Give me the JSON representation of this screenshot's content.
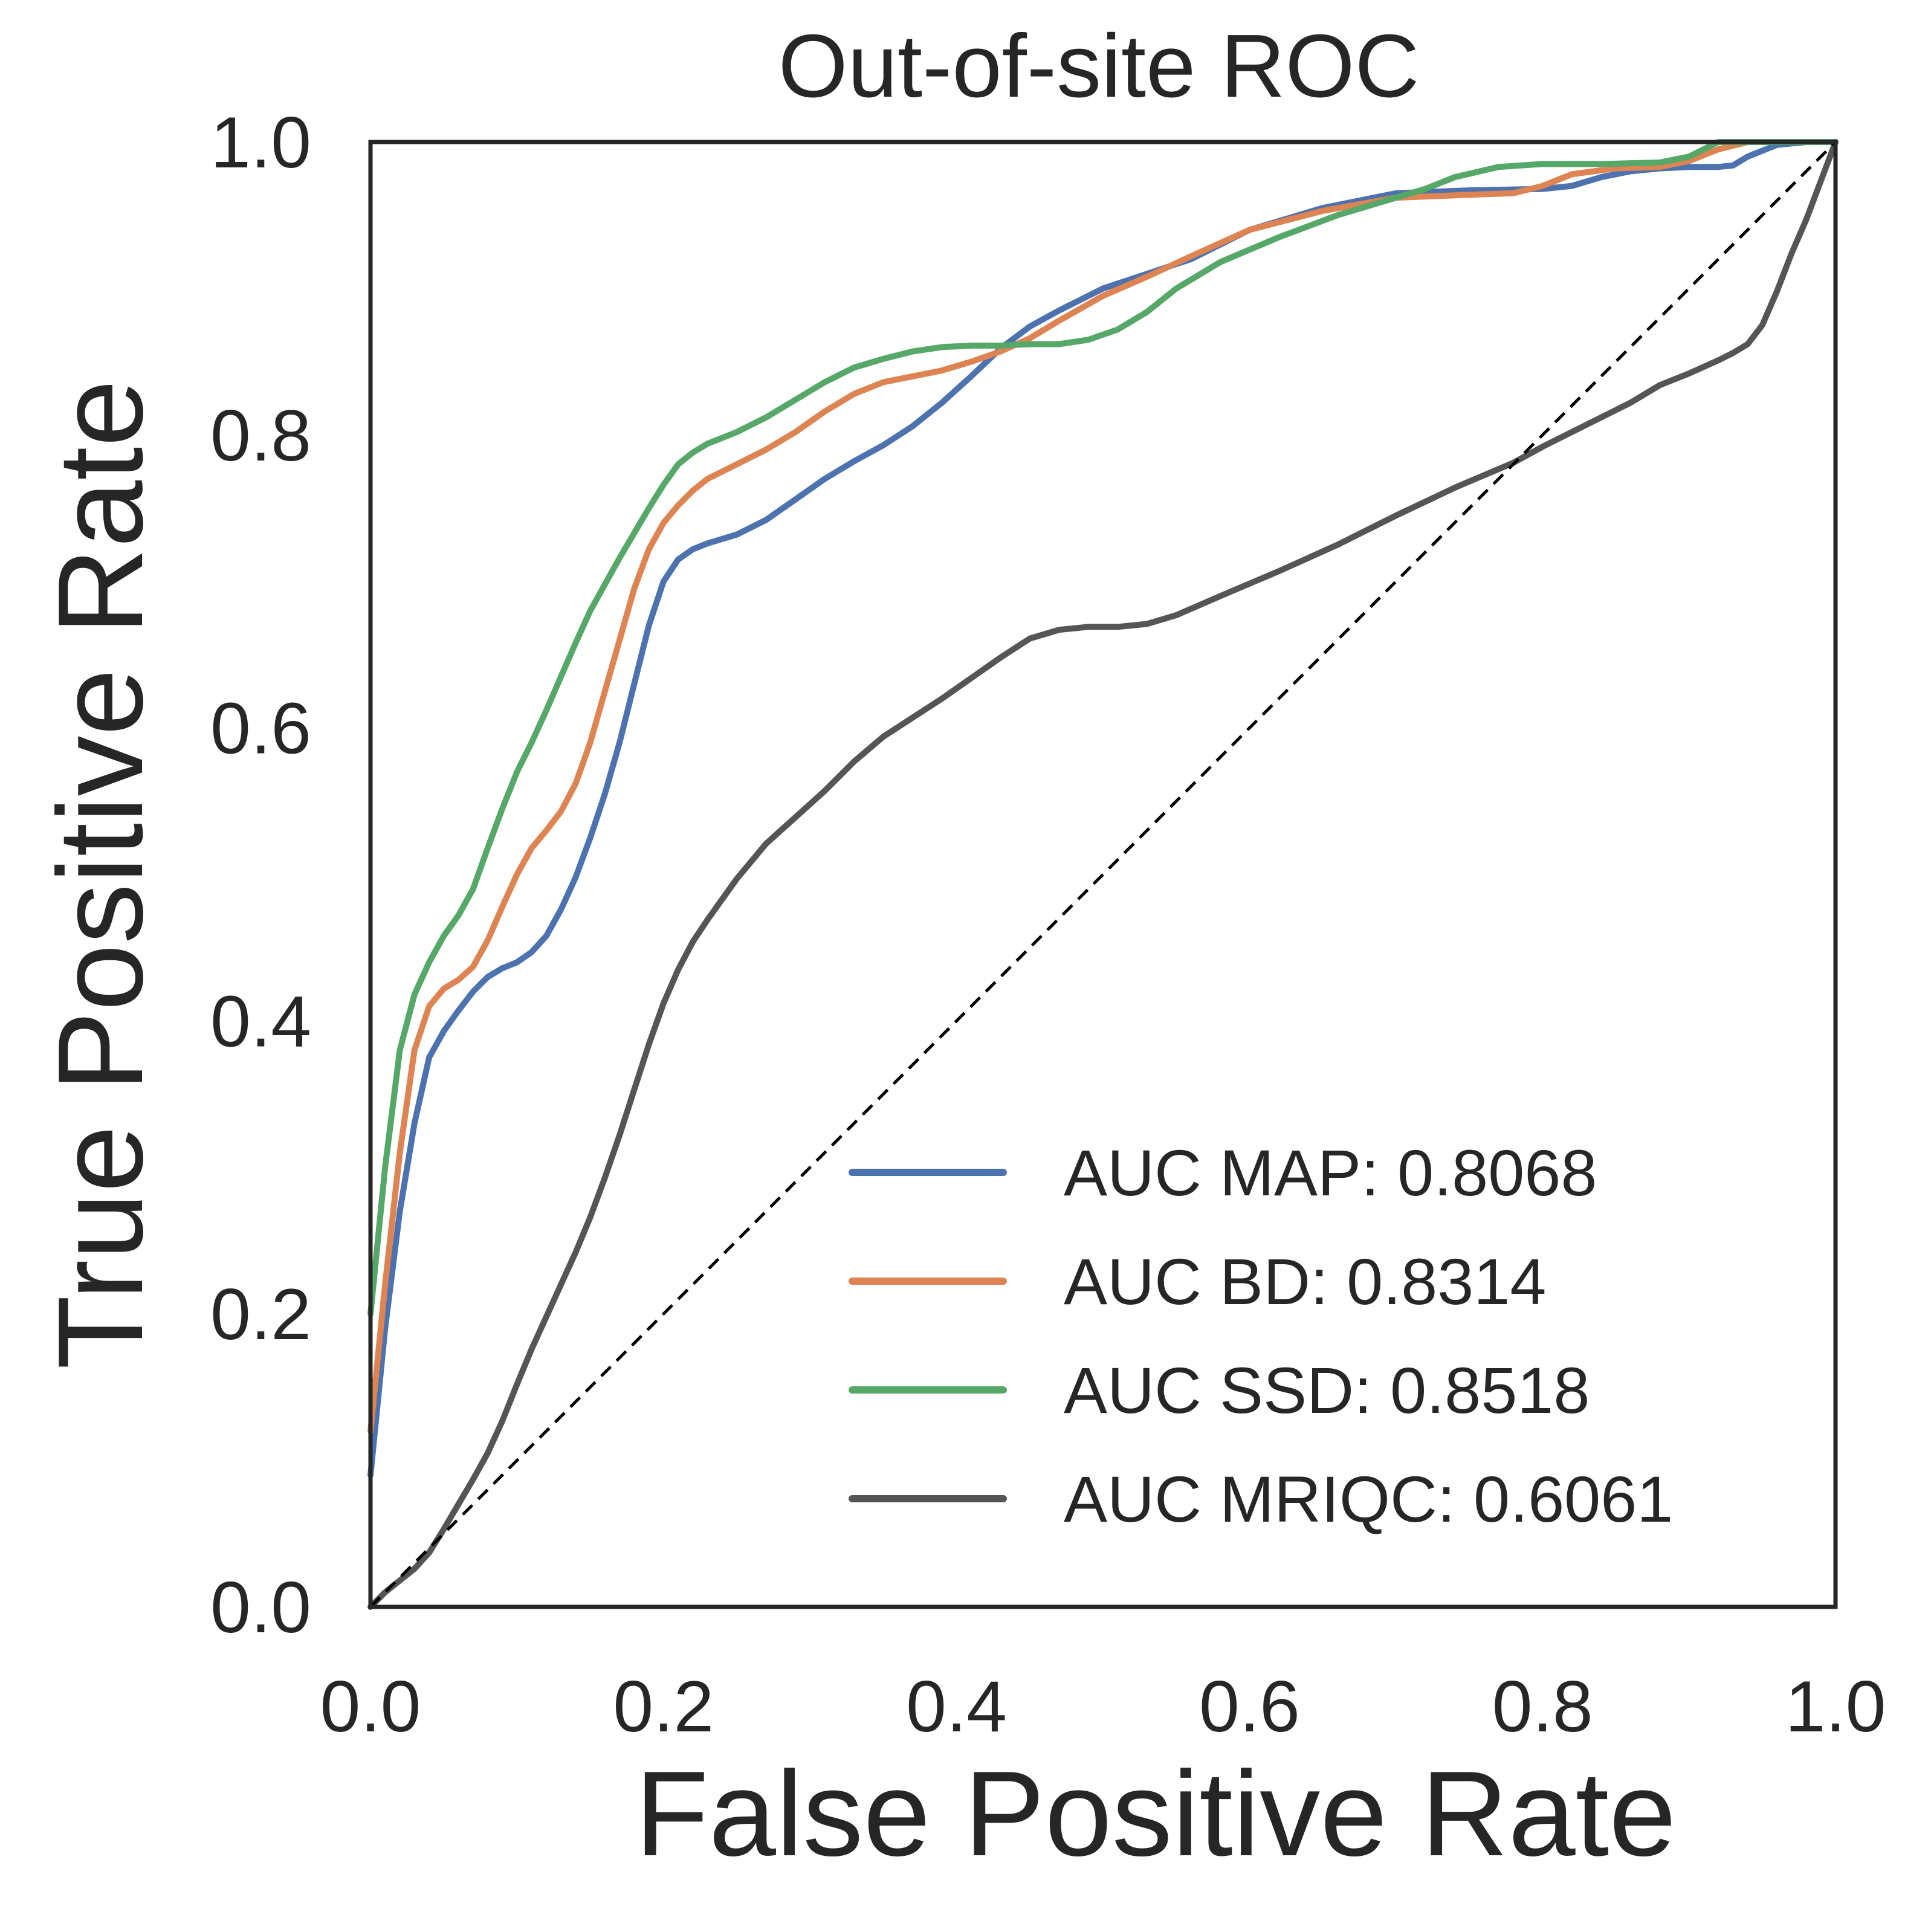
{
  "chart_data": {
    "type": "line",
    "title": "Out-of-site ROC",
    "xlabel": "False Positive Rate",
    "ylabel": "True Positive Rate",
    "xlim": [
      0.0,
      1.0
    ],
    "ylim": [
      0.0,
      1.0
    ],
    "x_ticks": [
      0.0,
      0.2,
      0.4,
      0.6,
      0.8,
      1.0
    ],
    "y_ticks": [
      0.0,
      0.2,
      0.4,
      0.6,
      0.8,
      1.0
    ],
    "x_tick_labels": [
      "0.0",
      "0.2",
      "0.4",
      "0.6",
      "0.8",
      "1.0"
    ],
    "y_tick_labels": [
      "0.0",
      "0.2",
      "0.4",
      "0.6",
      "0.8",
      "1.0"
    ],
    "grid": false,
    "legend_position": "lower-right",
    "series": [
      {
        "name": "AUC MAP: 0.8068",
        "color": "#4c72b0",
        "x": [
          0.0,
          0.01,
          0.02,
          0.03,
          0.04,
          0.05,
          0.06,
          0.07,
          0.08,
          0.09,
          0.1,
          0.11,
          0.12,
          0.13,
          0.14,
          0.15,
          0.16,
          0.17,
          0.18,
          0.19,
          0.2,
          0.21,
          0.22,
          0.23,
          0.25,
          0.27,
          0.29,
          0.31,
          0.33,
          0.35,
          0.37,
          0.39,
          0.41,
          0.43,
          0.45,
          0.47,
          0.5,
          0.53,
          0.56,
          0.6,
          0.65,
          0.7,
          0.75,
          0.8,
          0.82,
          0.84,
          0.86,
          0.88,
          0.9,
          0.92,
          0.93,
          0.94,
          0.96,
          0.98,
          1.0
        ],
        "y": [
          0.09,
          0.19,
          0.27,
          0.33,
          0.375,
          0.393,
          0.407,
          0.42,
          0.43,
          0.436,
          0.44,
          0.447,
          0.458,
          0.476,
          0.498,
          0.525,
          0.555,
          0.59,
          0.63,
          0.67,
          0.7,
          0.715,
          0.722,
          0.726,
          0.732,
          0.742,
          0.756,
          0.77,
          0.782,
          0.793,
          0.806,
          0.822,
          0.84,
          0.859,
          0.874,
          0.885,
          0.9,
          0.91,
          0.92,
          0.94,
          0.955,
          0.965,
          0.967,
          0.968,
          0.97,
          0.976,
          0.98,
          0.982,
          0.983,
          0.983,
          0.984,
          0.99,
          0.998,
          1.0,
          1.0
        ]
      },
      {
        "name": "AUC BD: 0.8314",
        "color": "#dd8452",
        "x": [
          0.0,
          0.01,
          0.02,
          0.03,
          0.04,
          0.05,
          0.06,
          0.07,
          0.08,
          0.09,
          0.1,
          0.11,
          0.12,
          0.13,
          0.14,
          0.15,
          0.16,
          0.17,
          0.18,
          0.19,
          0.2,
          0.21,
          0.22,
          0.23,
          0.25,
          0.27,
          0.29,
          0.31,
          0.33,
          0.35,
          0.37,
          0.39,
          0.41,
          0.43,
          0.45,
          0.47,
          0.5,
          0.53,
          0.56,
          0.6,
          0.65,
          0.7,
          0.75,
          0.78,
          0.8,
          0.82,
          0.85,
          0.88,
          0.9,
          0.92,
          0.94,
          1.0
        ],
        "y": [
          0.12,
          0.22,
          0.31,
          0.38,
          0.41,
          0.422,
          0.428,
          0.437,
          0.455,
          0.478,
          0.5,
          0.518,
          0.53,
          0.543,
          0.562,
          0.59,
          0.625,
          0.66,
          0.695,
          0.722,
          0.74,
          0.752,
          0.762,
          0.77,
          0.78,
          0.79,
          0.802,
          0.816,
          0.828,
          0.836,
          0.84,
          0.844,
          0.85,
          0.857,
          0.866,
          0.878,
          0.895,
          0.908,
          0.922,
          0.94,
          0.953,
          0.962,
          0.964,
          0.965,
          0.97,
          0.978,
          0.982,
          0.983,
          0.987,
          0.995,
          1.0,
          1.0
        ]
      },
      {
        "name": "AUC SSD: 0.8518",
        "color": "#55a868",
        "x": [
          0.0,
          0.01,
          0.02,
          0.03,
          0.04,
          0.05,
          0.06,
          0.07,
          0.08,
          0.09,
          0.1,
          0.11,
          0.12,
          0.13,
          0.14,
          0.15,
          0.16,
          0.17,
          0.18,
          0.19,
          0.2,
          0.21,
          0.22,
          0.23,
          0.25,
          0.27,
          0.29,
          0.31,
          0.33,
          0.35,
          0.37,
          0.39,
          0.41,
          0.43,
          0.45,
          0.47,
          0.49,
          0.51,
          0.53,
          0.55,
          0.58,
          0.62,
          0.66,
          0.7,
          0.72,
          0.74,
          0.77,
          0.8,
          0.84,
          0.88,
          0.9,
          0.92,
          1.0
        ],
        "y": [
          0.2,
          0.3,
          0.38,
          0.418,
          0.44,
          0.458,
          0.472,
          0.49,
          0.518,
          0.545,
          0.57,
          0.59,
          0.612,
          0.635,
          0.658,
          0.68,
          0.698,
          0.716,
          0.733,
          0.75,
          0.766,
          0.78,
          0.788,
          0.794,
          0.802,
          0.812,
          0.824,
          0.836,
          0.846,
          0.852,
          0.857,
          0.86,
          0.861,
          0.861,
          0.862,
          0.862,
          0.865,
          0.872,
          0.884,
          0.9,
          0.918,
          0.935,
          0.95,
          0.962,
          0.968,
          0.976,
          0.983,
          0.985,
          0.985,
          0.986,
          0.99,
          1.0,
          1.0
        ]
      },
      {
        "name": "AUC MRIQC: 0.6061",
        "color": "#555555",
        "x": [
          0.0,
          0.01,
          0.02,
          0.03,
          0.04,
          0.05,
          0.06,
          0.07,
          0.08,
          0.09,
          0.1,
          0.11,
          0.12,
          0.13,
          0.14,
          0.15,
          0.16,
          0.17,
          0.18,
          0.19,
          0.2,
          0.21,
          0.22,
          0.23,
          0.25,
          0.27,
          0.29,
          0.31,
          0.33,
          0.35,
          0.37,
          0.39,
          0.41,
          0.43,
          0.45,
          0.47,
          0.49,
          0.51,
          0.53,
          0.55,
          0.58,
          0.62,
          0.66,
          0.7,
          0.74,
          0.78,
          0.8,
          0.83,
          0.86,
          0.88,
          0.9,
          0.92,
          0.93,
          0.94,
          0.95,
          0.96,
          0.97,
          0.98,
          1.0
        ],
        "y": [
          0.0,
          0.01,
          0.018,
          0.026,
          0.037,
          0.053,
          0.07,
          0.087,
          0.105,
          0.127,
          0.152,
          0.176,
          0.198,
          0.22,
          0.242,
          0.266,
          0.293,
          0.322,
          0.353,
          0.384,
          0.412,
          0.435,
          0.454,
          0.469,
          0.497,
          0.521,
          0.539,
          0.557,
          0.577,
          0.594,
          0.607,
          0.62,
          0.634,
          0.648,
          0.661,
          0.667,
          0.669,
          0.669,
          0.671,
          0.677,
          0.69,
          0.707,
          0.725,
          0.745,
          0.764,
          0.781,
          0.792,
          0.807,
          0.822,
          0.834,
          0.842,
          0.851,
          0.856,
          0.862,
          0.875,
          0.898,
          0.924,
          0.947,
          1.0
        ]
      }
    ],
    "reference_line": {
      "name": "chance",
      "style": "dashed",
      "color": "#000000",
      "x": [
        0.0,
        1.0
      ],
      "y": [
        0.0,
        1.0
      ]
    }
  }
}
